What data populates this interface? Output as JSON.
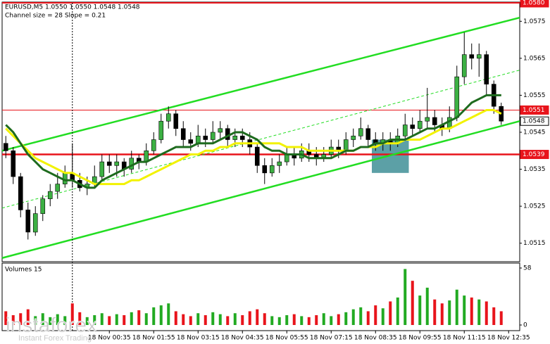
{
  "chart_data": {
    "type": "candlestick",
    "title": "EURUSD,M5  1.0550 1.0550 1.0548 1.0548",
    "subtitle": "Channel size = 28 Slope = 0.21",
    "categories": [
      null,
      null,
      null,
      null,
      null,
      null,
      null,
      null,
      null,
      null,
      null,
      null,
      null,
      null,
      "18 Nov 00:35",
      null,
      null,
      null,
      null,
      null,
      "18 Nov 01:55",
      null,
      null,
      null,
      null,
      null,
      "18 Nov 03:15",
      null,
      null,
      null,
      null,
      null,
      "18 Nov 04:35",
      null,
      null,
      null,
      null,
      null,
      "18 Nov 05:55",
      null,
      null,
      null,
      null,
      null,
      "18 Nov 07:15",
      null,
      null,
      null,
      null,
      null,
      "18 Nov 08:35",
      null,
      null,
      null,
      null,
      null,
      "18 Nov 09:55",
      null,
      null,
      null,
      null,
      null,
      "18 Nov 11:15",
      null,
      null,
      null,
      null,
      null,
      "18 Nov 12:35",
      null
    ],
    "ohlc": [
      [
        1.0542,
        1.0544,
        1.0538,
        1.054
      ],
      [
        1.054,
        1.0541,
        1.0531,
        1.0533
      ],
      [
        1.0533,
        1.0534,
        1.0522,
        1.0524
      ],
      [
        1.0524,
        1.0526,
        1.0516,
        1.0518
      ],
      [
        1.0518,
        1.0525,
        1.0517,
        1.0523
      ],
      [
        1.0523,
        1.0528,
        1.0521,
        1.0527
      ],
      [
        1.0527,
        1.0531,
        1.0525,
        1.0529
      ],
      [
        1.0529,
        1.0534,
        1.0527,
        1.0531
      ],
      [
        1.0531,
        1.0536,
        1.053,
        1.0534
      ],
      [
        1.0534,
        1.0542,
        1.053,
        1.0532
      ],
      [
        1.0532,
        1.0534,
        1.0529,
        1.053
      ],
      [
        1.053,
        1.0533,
        1.0528,
        1.0531
      ],
      [
        1.0531,
        1.0536,
        1.053,
        1.0533
      ],
      [
        1.0533,
        1.0539,
        1.0532,
        1.0537
      ],
      [
        1.0537,
        1.0539,
        1.0534,
        1.0536
      ],
      [
        1.0536,
        1.0539,
        1.0533,
        1.0537
      ],
      [
        1.0537,
        1.0538,
        1.0533,
        1.0535
      ],
      [
        1.0535,
        1.054,
        1.0534,
        1.0538
      ],
      [
        1.0538,
        1.0539,
        1.0535,
        1.0537
      ],
      [
        1.0537,
        1.0542,
        1.0536,
        1.054
      ],
      [
        1.054,
        1.0545,
        1.0539,
        1.0543
      ],
      [
        1.0543,
        1.055,
        1.0542,
        1.0548
      ],
      [
        1.0548,
        1.0552,
        1.0546,
        1.055
      ],
      [
        1.055,
        1.0551,
        1.0544,
        1.0546
      ],
      [
        1.0546,
        1.0548,
        1.0541,
        1.0543
      ],
      [
        1.0543,
        1.0545,
        1.054,
        1.0542
      ],
      [
        1.0542,
        1.0547,
        1.0541,
        1.0544
      ],
      [
        1.0544,
        1.0546,
        1.0541,
        1.0543
      ],
      [
        1.0543,
        1.0548,
        1.0542,
        1.0545
      ],
      [
        1.0545,
        1.0548,
        1.0543,
        1.0546
      ],
      [
        1.0546,
        1.0547,
        1.0541,
        1.0543
      ],
      [
        1.0543,
        1.0546,
        1.0541,
        1.0544
      ],
      [
        1.0544,
        1.0546,
        1.0541,
        1.0543
      ],
      [
        1.0543,
        1.0545,
        1.0539,
        1.0541
      ],
      [
        1.0541,
        1.0542,
        1.0534,
        1.0536
      ],
      [
        1.0536,
        1.0538,
        1.0531,
        1.0534
      ],
      [
        1.0534,
        1.0538,
        1.0533,
        1.0536
      ],
      [
        1.0536,
        1.0539,
        1.0534,
        1.0537
      ],
      [
        1.0537,
        1.0541,
        1.0536,
        1.0539
      ],
      [
        1.0539,
        1.0541,
        1.0536,
        1.0538
      ],
      [
        1.0538,
        1.0542,
        1.0537,
        1.054
      ],
      [
        1.054,
        1.0542,
        1.0537,
        1.0539
      ],
      [
        1.0539,
        1.0541,
        1.0536,
        1.0538
      ],
      [
        1.0538,
        1.0541,
        1.0537,
        1.0539
      ],
      [
        1.0539,
        1.0543,
        1.0538,
        1.0541
      ],
      [
        1.0541,
        1.0543,
        1.0538,
        1.054
      ],
      [
        1.054,
        1.0545,
        1.0539,
        1.0543
      ],
      [
        1.0543,
        1.0546,
        1.0541,
        1.0544
      ],
      [
        1.0544,
        1.0549,
        1.0543,
        1.0546
      ],
      [
        1.0546,
        1.0547,
        1.0541,
        1.0543
      ],
      [
        1.0543,
        1.0545,
        1.054,
        1.0542
      ],
      [
        1.0542,
        1.0545,
        1.054,
        1.0543
      ],
      [
        1.0543,
        1.0545,
        1.054,
        1.0542
      ],
      [
        1.0542,
        1.0546,
        1.0541,
        1.0544
      ],
      [
        1.0544,
        1.055,
        1.0543,
        1.0547
      ],
      [
        1.0547,
        1.0549,
        1.0544,
        1.0546
      ],
      [
        1.0546,
        1.0551,
        1.0545,
        1.0548
      ],
      [
        1.0548,
        1.0557,
        1.0546,
        1.0549
      ],
      [
        1.0549,
        1.0551,
        1.0545,
        1.0547
      ],
      [
        1.0547,
        1.0549,
        1.0544,
        1.0546
      ],
      [
        1.0546,
        1.0552,
        1.0545,
        1.0549
      ],
      [
        1.0549,
        1.0563,
        1.0548,
        1.056
      ],
      [
        1.056,
        1.0572,
        1.0558,
        1.0566
      ],
      [
        1.0566,
        1.0569,
        1.0562,
        1.0565
      ],
      [
        1.0565,
        1.0569,
        1.056,
        1.0566
      ],
      [
        1.0566,
        1.0567,
        1.0555,
        1.0558
      ],
      [
        1.0558,
        1.0559,
        1.055,
        1.0552
      ],
      [
        1.0552,
        1.0553,
        1.0547,
        1.0548
      ],
      null,
      null
    ],
    "up_color": "#3cb043",
    "down_color": "#000000",
    "moving_averages": [
      {
        "color": "#f2f200",
        "width": 3,
        "values": [
          1.0546,
          1.0544,
          1.0542,
          1.054,
          1.0538,
          1.0537,
          1.0536,
          1.0535,
          1.0534,
          1.0534,
          1.0533,
          1.0532,
          1.0531,
          1.0531,
          1.0531,
          1.0531,
          1.0531,
          1.0532,
          1.0532,
          1.0533,
          1.0534,
          1.0535,
          1.0536,
          1.0537,
          1.0538,
          1.0539,
          1.0539,
          1.054,
          1.054,
          1.0541,
          1.0541,
          1.0542,
          1.0542,
          1.0542,
          1.0542,
          1.0542,
          1.0542,
          1.0542,
          1.0541,
          1.0541,
          1.0541,
          1.054,
          1.054,
          1.054,
          1.054,
          1.054,
          1.054,
          1.054,
          1.0541,
          1.0541,
          1.0541,
          1.0542,
          1.0542,
          1.0542,
          1.0543,
          1.0543,
          1.0543,
          1.0544,
          1.0545,
          1.0546,
          1.0546,
          1.0547,
          1.0548,
          1.0549,
          1.055,
          1.0551,
          1.0551,
          1.055,
          null,
          null
        ]
      },
      {
        "color": "#1e6b1e",
        "width": 3,
        "values": [
          1.0547,
          1.0545,
          1.0542,
          1.0539,
          1.0537,
          1.0535,
          1.0534,
          1.0533,
          1.0532,
          1.0532,
          1.0531,
          1.053,
          1.053,
          1.0532,
          1.0533,
          1.0534,
          1.0535,
          1.0536,
          1.0537,
          1.0537,
          1.0538,
          1.0539,
          1.054,
          1.0541,
          1.0541,
          1.0541,
          1.0542,
          1.0542,
          1.0542,
          1.0543,
          1.0544,
          1.0545,
          1.0545,
          1.0544,
          1.0543,
          1.0541,
          1.054,
          1.054,
          1.0539,
          1.0539,
          1.0539,
          1.0538,
          1.0538,
          1.0538,
          1.0538,
          1.0539,
          1.054,
          1.054,
          1.0541,
          1.0541,
          1.0542,
          1.0542,
          1.0543,
          1.0543,
          1.0543,
          1.0544,
          1.0545,
          1.0546,
          1.0546,
          1.0547,
          1.0548,
          1.0549,
          1.0551,
          1.0553,
          1.0554,
          1.0555,
          1.0555,
          1.0555,
          null,
          null
        ]
      }
    ],
    "channel_lines": [
      {
        "color": "#22dd22",
        "width": 2.5,
        "dashed": false,
        "values": [
          1.054,
          1.0576
        ]
      },
      {
        "color": "#22dd22",
        "width": 2.5,
        "dashed": false,
        "values": [
          1.0511,
          1.0548
        ]
      },
      {
        "color": "#22dd22",
        "width": 1,
        "dashed": true,
        "values": [
          1.05245,
          1.05618
        ]
      }
    ],
    "levels": [
      {
        "value": 1.058,
        "label": "1.0580",
        "color": "#e8141b",
        "width": 2
      },
      {
        "value": 1.0551,
        "label": "1.0551",
        "color": "#e8141b",
        "width": 1
      },
      {
        "value": 1.0539,
        "label": "1.0539",
        "color": "#e8141b",
        "width": 2.5
      }
    ],
    "current_price": 1.0548,
    "zone": {
      "xlim": [
        49.5,
        54.5
      ],
      "ylim": [
        1.0534,
        1.0543
      ],
      "color": "#3f8f96"
    },
    "cursor_index": 9,
    "ylim": [
      1.051,
      1.058
    ],
    "yticks": [
      1.0575,
      1.0565,
      1.0555,
      1.0545,
      1.0535,
      1.0525,
      1.0515
    ],
    "volume": {
      "title": "Volumes 15",
      "up_color": "#22aa22",
      "down_color": "#e8141b",
      "values": [
        14,
        10,
        12,
        16,
        9,
        12,
        8,
        11,
        9,
        22,
        13,
        8,
        10,
        12,
        9,
        11,
        10,
        13,
        15,
        12,
        18,
        20,
        22,
        14,
        11,
        9,
        12,
        10,
        13,
        11,
        9,
        12,
        10,
        14,
        16,
        12,
        9,
        8,
        10,
        11,
        9,
        8,
        10,
        12,
        9,
        11,
        13,
        16,
        18,
        14,
        20,
        17,
        24,
        28,
        57,
        45,
        30,
        38,
        26,
        22,
        25,
        36,
        30,
        28,
        26,
        24,
        18,
        14,
        null,
        null
      ],
      "ylim": [
        0,
        58
      ],
      "yticks": [
        58,
        0
      ]
    },
    "watermark": {
      "brand": "instaforex",
      "tagline": "Instant Forex Trading"
    }
  }
}
